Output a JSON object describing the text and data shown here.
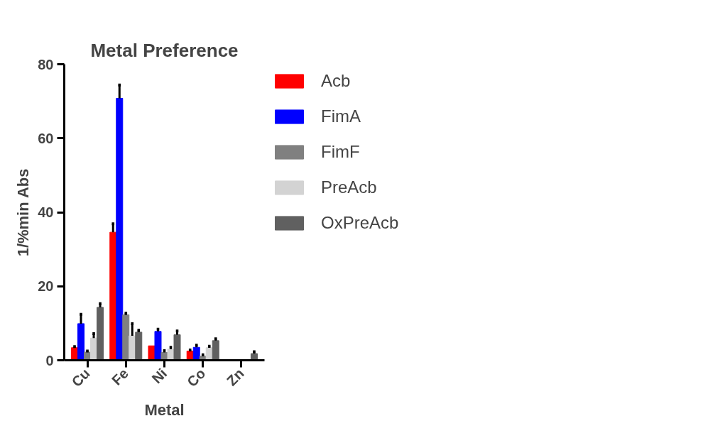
{
  "chart_data": {
    "type": "bar",
    "title": "Metal Preference",
    "xlabel": "Metal",
    "ylabel": "1/%min Abs",
    "categories": [
      "Cu",
      "Fe",
      "Ni",
      "Co",
      "Zn"
    ],
    "series": [
      {
        "name": "Acb",
        "color": "#ff0000",
        "values": [
          3.4,
          34.6,
          3.9,
          2.5,
          null
        ],
        "errors": [
          0.3,
          2.3,
          null,
          0.3,
          null
        ]
      },
      {
        "name": "FimA",
        "color": "#0000ff",
        "values": [
          9.9,
          70.8,
          7.8,
          3.5,
          null
        ],
        "errors": [
          2.5,
          3.6,
          0.6,
          0.6,
          null
        ]
      },
      {
        "name": "FimF",
        "color": "#808080",
        "values": [
          2.2,
          12.3,
          2.1,
          1.1,
          null
        ],
        "errors": [
          0.3,
          0.4,
          0.5,
          0.4,
          null
        ]
      },
      {
        "name": "PreAcb",
        "color": "#d3d3d3",
        "values": [
          6.0,
          6.6,
          3.0,
          3.4,
          null
        ],
        "errors": [
          1.2,
          3.3,
          0.5,
          0.4,
          null
        ]
      },
      {
        "name": "OxPreAcb",
        "color": "#606060",
        "values": [
          14.3,
          7.6,
          6.9,
          5.3,
          1.8
        ],
        "errors": [
          1.0,
          0.5,
          1.0,
          0.5,
          0.5
        ]
      }
    ],
    "ylim": [
      0,
      80
    ],
    "yticks": [
      0,
      20,
      40,
      60,
      80
    ],
    "grid": false,
    "legend": "right"
  }
}
